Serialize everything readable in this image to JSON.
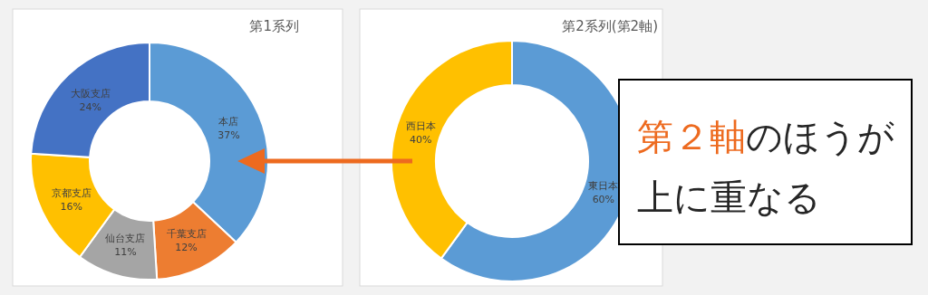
{
  "chart_data": [
    {
      "type": "donut",
      "title": "第1系列",
      "categories": [
        "本店",
        "千葉支店",
        "仙台支店",
        "京都支店",
        "大阪支店"
      ],
      "values": [
        37,
        12,
        11,
        16,
        24
      ],
      "colors": [
        "#5b9bd5",
        "#ed7d31",
        "#a5a5a5",
        "#ffc000",
        "#4472c4"
      ],
      "value_labels": [
        "37%",
        "12%",
        "11%",
        "16%",
        "24%"
      ]
    },
    {
      "type": "donut",
      "title": "第2系列(第2軸)",
      "categories": [
        "東日本",
        "西日本"
      ],
      "values": [
        60,
        40
      ],
      "colors": [
        "#5b9bd5",
        "#ffc000"
      ],
      "value_labels": [
        "60%",
        "40%"
      ],
      "annotations": [
        "第２軸",
        "のほうが",
        "上に重なる"
      ]
    }
  ]
}
